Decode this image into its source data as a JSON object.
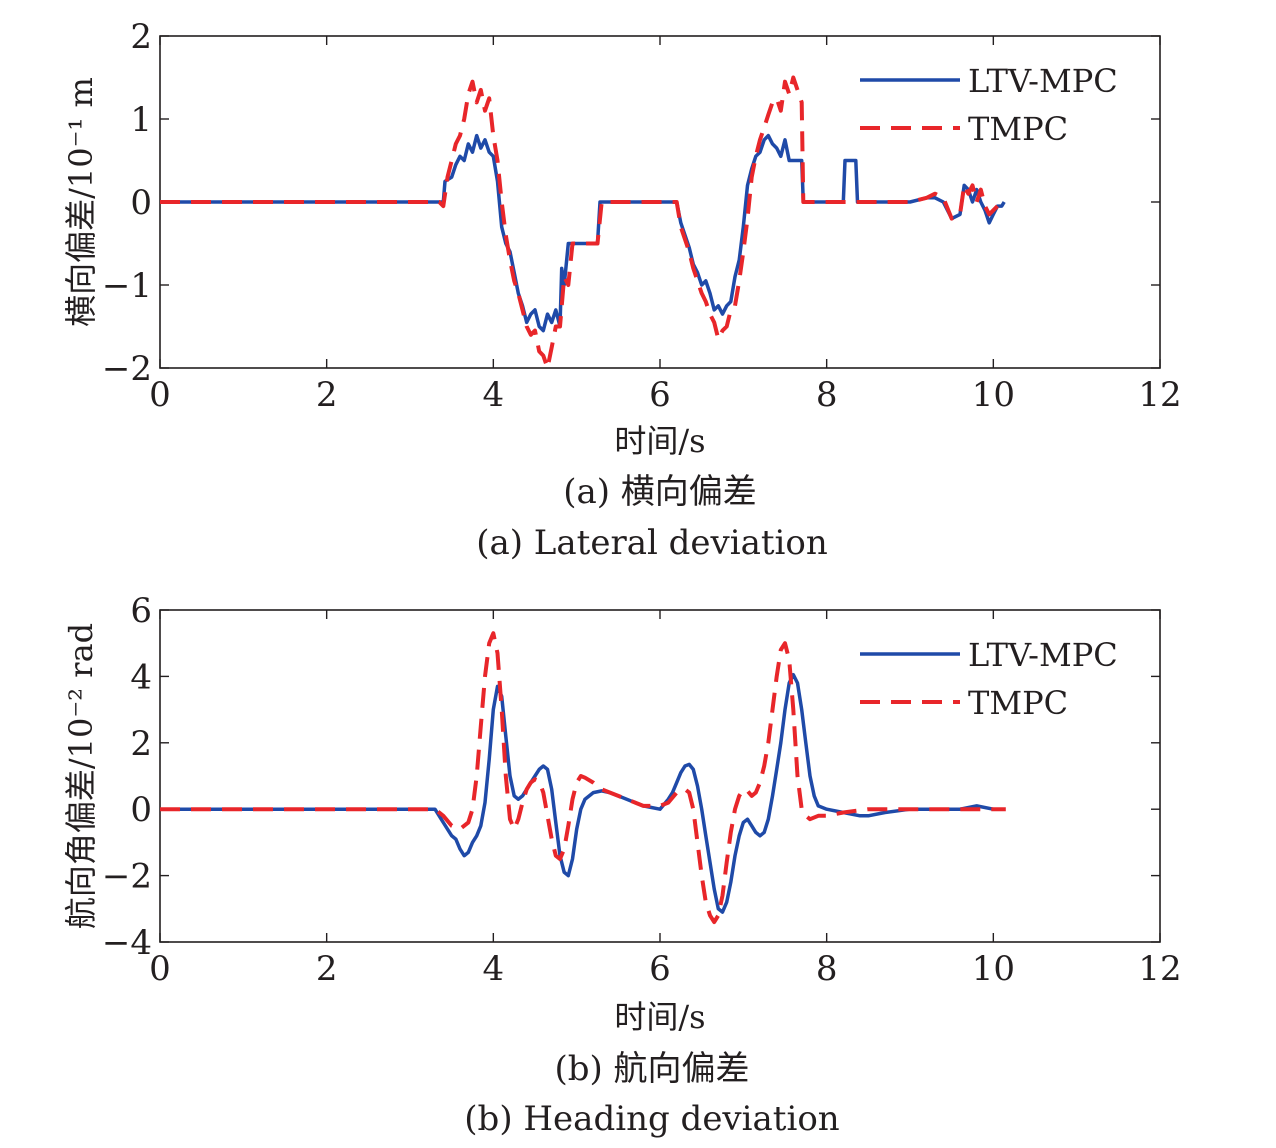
{
  "chart_data": [
    {
      "type": "line",
      "xlabel": "时间/s",
      "ylabel": "横向偏差/10⁻¹ m",
      "caption_cn": "(a) 横向偏差",
      "caption_en": "(a) Lateral deviation",
      "xlim": [
        0,
        12
      ],
      "ylim": [
        -2,
        2
      ],
      "xticks": [
        0,
        2,
        4,
        6,
        8,
        10,
        12
      ],
      "yticks": [
        -2,
        -1,
        0,
        1,
        2
      ],
      "xtick_labels": [
        "0",
        "2",
        "4",
        "6",
        "8",
        "10",
        "12"
      ],
      "ytick_labels": [
        "−2",
        "−1",
        "0",
        "1",
        "2"
      ],
      "grid": false,
      "legend_position": "top-right",
      "series": [
        {
          "name": "LTV-MPC",
          "color": "#1f4aa8",
          "style": "solid",
          "x": [
            0,
            3.4,
            3.42,
            3.5,
            3.55,
            3.6,
            3.65,
            3.7,
            3.75,
            3.8,
            3.85,
            3.9,
            3.95,
            4.0,
            4.05,
            4.1,
            4.15,
            4.2,
            4.25,
            4.3,
            4.35,
            4.4,
            4.45,
            4.5,
            4.55,
            4.6,
            4.65,
            4.7,
            4.75,
            4.8,
            4.82,
            4.85,
            4.9,
            4.95,
            5.25,
            5.28,
            6.2,
            6.25,
            6.3,
            6.35,
            6.4,
            6.45,
            6.5,
            6.55,
            6.6,
            6.65,
            6.7,
            6.75,
            6.8,
            6.85,
            6.9,
            6.95,
            7.0,
            7.05,
            7.1,
            7.15,
            7.2,
            7.25,
            7.3,
            7.35,
            7.4,
            7.45,
            7.5,
            7.55,
            7.6,
            7.65,
            7.7,
            7.72,
            8.2,
            8.22,
            8.35,
            8.37,
            9.0,
            9.2,
            9.3,
            9.4,
            9.5,
            9.6,
            9.65,
            9.7,
            9.75,
            9.8,
            9.85,
            9.9,
            9.95,
            10.0,
            10.05,
            10.1,
            10.13
          ],
          "y": [
            0,
            0,
            0.25,
            0.3,
            0.45,
            0.55,
            0.5,
            0.7,
            0.6,
            0.8,
            0.65,
            0.75,
            0.6,
            0.55,
            0.25,
            -0.3,
            -0.5,
            -0.6,
            -0.85,
            -1.1,
            -1.25,
            -1.45,
            -1.35,
            -1.3,
            -1.5,
            -1.55,
            -1.35,
            -1.45,
            -1.3,
            -1.5,
            -0.8,
            -1.0,
            -0.5,
            -0.5,
            -0.5,
            0,
            0,
            -0.25,
            -0.4,
            -0.55,
            -0.75,
            -0.85,
            -1.0,
            -0.95,
            -1.1,
            -1.3,
            -1.25,
            -1.35,
            -1.25,
            -1.2,
            -0.9,
            -0.7,
            -0.3,
            0.2,
            0.4,
            0.55,
            0.6,
            0.75,
            0.8,
            0.7,
            0.65,
            0.55,
            0.75,
            0.5,
            0.5,
            0.5,
            0.5,
            0,
            0,
            0.5,
            0.5,
            0,
            0,
            0.05,
            0.05,
            0.0,
            -0.2,
            -0.15,
            0.2,
            0.15,
            0.0,
            0.15,
            0.0,
            -0.1,
            -0.25,
            -0.15,
            -0.05,
            -0.05,
            0
          ]
        },
        {
          "name": "TMPC",
          "color": "#e8262a",
          "style": "dashed",
          "x": [
            0,
            3.35,
            3.4,
            3.45,
            3.5,
            3.55,
            3.6,
            3.65,
            3.7,
            3.75,
            3.8,
            3.85,
            3.9,
            3.95,
            4.0,
            4.05,
            4.1,
            4.15,
            4.2,
            4.25,
            4.3,
            4.35,
            4.4,
            4.45,
            4.5,
            4.55,
            4.6,
            4.65,
            4.7,
            4.75,
            4.8,
            4.85,
            4.9,
            4.95,
            5.25,
            5.3,
            6.2,
            6.25,
            6.3,
            6.35,
            6.4,
            6.45,
            6.5,
            6.55,
            6.6,
            6.65,
            6.7,
            6.75,
            6.8,
            6.85,
            6.9,
            6.95,
            7.0,
            7.05,
            7.1,
            7.15,
            7.2,
            7.25,
            7.3,
            7.35,
            7.4,
            7.45,
            7.5,
            7.55,
            7.6,
            7.65,
            7.7,
            7.72,
            8.25,
            9.0,
            9.2,
            9.3,
            9.4,
            9.5,
            9.6,
            9.65,
            9.7,
            9.75,
            9.8,
            9.85,
            9.9,
            9.95,
            10.0,
            10.05,
            10.1,
            10.15
          ],
          "y": [
            0,
            0,
            -0.05,
            0.3,
            0.5,
            0.7,
            0.8,
            1.0,
            1.3,
            1.45,
            1.2,
            1.35,
            1.1,
            1.25,
            0.8,
            0.5,
            0.0,
            -0.4,
            -0.7,
            -0.95,
            -1.1,
            -1.3,
            -1.5,
            -1.6,
            -1.55,
            -1.8,
            -1.85,
            -2.0,
            -1.75,
            -1.5,
            -1.5,
            -0.9,
            -1.0,
            -0.5,
            -0.5,
            0,
            0,
            -0.3,
            -0.45,
            -0.6,
            -0.8,
            -0.95,
            -1.1,
            -1.2,
            -1.35,
            -1.45,
            -1.65,
            -1.55,
            -1.5,
            -1.3,
            -1.25,
            -0.95,
            -0.6,
            -0.2,
            0.3,
            0.55,
            0.75,
            0.9,
            1.05,
            1.2,
            1.25,
            1.1,
            1.45,
            1.3,
            1.5,
            1.35,
            1.2,
            0,
            0,
            0,
            0.05,
            0.1,
            0.05,
            -0.2,
            -0.15,
            0.2,
            0.1,
            0.2,
            0.0,
            0.15,
            -0.05,
            -0.15,
            -0.1,
            -0.05,
            0,
            0
          ]
        }
      ]
    },
    {
      "type": "line",
      "xlabel": "时间/s",
      "ylabel": "航向角偏差/10⁻² rad",
      "caption_cn": "(b) 航向偏差",
      "caption_en": "(b) Heading deviation",
      "xlim": [
        0,
        12
      ],
      "ylim": [
        -4,
        6
      ],
      "xticks": [
        0,
        2,
        4,
        6,
        8,
        10,
        12
      ],
      "yticks": [
        -4,
        -2,
        0,
        2,
        4,
        6
      ],
      "xtick_labels": [
        "0",
        "2",
        "4",
        "6",
        "8",
        "10",
        "12"
      ],
      "ytick_labels": [
        "−4",
        "−2",
        "0",
        "2",
        "4",
        "6"
      ],
      "grid": false,
      "legend_position": "top-right",
      "series": [
        {
          "name": "LTV-MPC",
          "color": "#1f4aa8",
          "style": "solid",
          "x": [
            0,
            3.3,
            3.4,
            3.5,
            3.55,
            3.6,
            3.65,
            3.7,
            3.75,
            3.8,
            3.85,
            3.9,
            3.95,
            4.0,
            4.05,
            4.1,
            4.15,
            4.2,
            4.25,
            4.3,
            4.35,
            4.4,
            4.45,
            4.5,
            4.55,
            4.6,
            4.65,
            4.7,
            4.75,
            4.8,
            4.85,
            4.9,
            4.95,
            5.0,
            5.05,
            5.1,
            5.2,
            5.3,
            5.4,
            5.5,
            5.6,
            5.8,
            6.0,
            6.1,
            6.15,
            6.2,
            6.25,
            6.3,
            6.35,
            6.4,
            6.45,
            6.5,
            6.55,
            6.6,
            6.65,
            6.7,
            6.75,
            6.8,
            6.85,
            6.9,
            6.95,
            7.0,
            7.05,
            7.1,
            7.15,
            7.2,
            7.25,
            7.3,
            7.35,
            7.4,
            7.45,
            7.5,
            7.55,
            7.6,
            7.65,
            7.7,
            7.75,
            7.8,
            7.85,
            7.9,
            8.0,
            8.2,
            8.4,
            8.5,
            8.7,
            9.0,
            9.3,
            9.6,
            9.8,
            10.0,
            10.1
          ],
          "y": [
            0,
            0,
            -0.4,
            -0.8,
            -0.9,
            -1.2,
            -1.4,
            -1.3,
            -1.0,
            -0.8,
            -0.5,
            0.2,
            1.5,
            3.0,
            3.7,
            3.4,
            2.2,
            1.0,
            0.4,
            0.3,
            0.4,
            0.6,
            0.8,
            1.0,
            1.2,
            1.3,
            1.2,
            0.6,
            -0.4,
            -1.4,
            -1.9,
            -2.0,
            -1.5,
            -0.6,
            0.0,
            0.3,
            0.5,
            0.55,
            0.5,
            0.4,
            0.3,
            0.1,
            0.0,
            0.3,
            0.5,
            0.8,
            1.1,
            1.3,
            1.35,
            1.2,
            0.7,
            0.0,
            -0.8,
            -1.6,
            -2.4,
            -3.0,
            -3.1,
            -2.8,
            -2.2,
            -1.4,
            -0.8,
            -0.4,
            -0.3,
            -0.5,
            -0.7,
            -0.8,
            -0.7,
            -0.3,
            0.4,
            1.2,
            2.0,
            3.0,
            3.8,
            4.05,
            3.8,
            3.0,
            2.0,
            1.0,
            0.4,
            0.1,
            0.0,
            -0.1,
            -0.2,
            -0.2,
            -0.1,
            0.0,
            0.0,
            0.0,
            0.1,
            0.0,
            0.0
          ]
        },
        {
          "name": "TMPC",
          "color": "#e8262a",
          "style": "dashed",
          "x": [
            0,
            3.3,
            3.4,
            3.5,
            3.6,
            3.7,
            3.75,
            3.8,
            3.85,
            3.9,
            3.95,
            4.0,
            4.05,
            4.1,
            4.15,
            4.2,
            4.25,
            4.3,
            4.35,
            4.4,
            4.45,
            4.5,
            4.55,
            4.6,
            4.65,
            4.7,
            4.75,
            4.8,
            4.85,
            4.9,
            4.95,
            5.0,
            5.05,
            5.1,
            5.2,
            5.3,
            5.4,
            5.5,
            5.6,
            5.8,
            6.0,
            6.1,
            6.2,
            6.3,
            6.35,
            6.4,
            6.45,
            6.5,
            6.55,
            6.6,
            6.65,
            6.7,
            6.75,
            6.8,
            6.85,
            6.9,
            6.95,
            7.0,
            7.05,
            7.1,
            7.15,
            7.2,
            7.25,
            7.3,
            7.35,
            7.4,
            7.45,
            7.5,
            7.55,
            7.6,
            7.65,
            7.7,
            7.75,
            7.8,
            7.9,
            8.0,
            8.2,
            8.5,
            9.0,
            9.3,
            9.6,
            9.8,
            10.0,
            10.15
          ],
          "y": [
            0,
            0,
            -0.2,
            -0.5,
            -0.6,
            -0.4,
            0.0,
            1.0,
            2.5,
            4.0,
            5.0,
            5.3,
            4.7,
            3.0,
            1.0,
            -0.3,
            -0.6,
            -0.3,
            0.2,
            0.6,
            0.8,
            0.9,
            0.85,
            0.5,
            -0.2,
            -0.9,
            -1.4,
            -1.5,
            -1.2,
            -0.5,
            0.3,
            0.8,
            1.0,
            0.95,
            0.8,
            0.6,
            0.5,
            0.4,
            0.3,
            0.1,
            0.1,
            0.2,
            0.5,
            0.6,
            0.5,
            0.0,
            -1.0,
            -2.0,
            -2.8,
            -3.2,
            -3.4,
            -3.2,
            -2.6,
            -1.6,
            -0.7,
            0.0,
            0.4,
            0.6,
            0.55,
            0.4,
            0.5,
            0.8,
            1.3,
            2.0,
            3.0,
            4.0,
            4.8,
            5.0,
            4.5,
            3.0,
            1.0,
            0.0,
            -0.2,
            -0.3,
            -0.2,
            -0.2,
            -0.1,
            0.0,
            0.0,
            0.0,
            0.0,
            0.0,
            0.0,
            0.0
          ]
        }
      ]
    }
  ]
}
